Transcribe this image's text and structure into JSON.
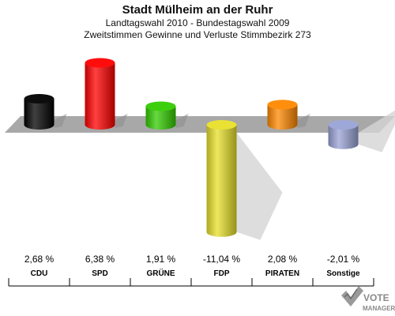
{
  "header": {
    "title": "Stadt Mülheim an der Ruhr",
    "subtitle1": "Landtagswahl 2010 - Bundestagswahl 2009",
    "subtitle2": "Zweitstimmen Gewinne und Verluste Stimmbezirk 273"
  },
  "chart_data": {
    "type": "bar",
    "categories": [
      "CDU",
      "SPD",
      "GRÜNE",
      "FDP",
      "PIRATEN",
      "Sonstige"
    ],
    "values": [
      2.68,
      6.38,
      1.91,
      -11.04,
      2.08,
      -2.01
    ],
    "value_labels": [
      "2,68 %",
      "6,38 %",
      "1,91 %",
      "-11,04 %",
      "2,08 %",
      "-2,01 %"
    ],
    "colors": [
      "#000000",
      "#ff0000",
      "#33cc00",
      "#e8e02a",
      "#ff8800",
      "#99a3d6"
    ],
    "unit": "%",
    "grid": false,
    "legend": "none"
  },
  "watermark": {
    "line1": "VOTE",
    "line2": "MANAGER"
  }
}
